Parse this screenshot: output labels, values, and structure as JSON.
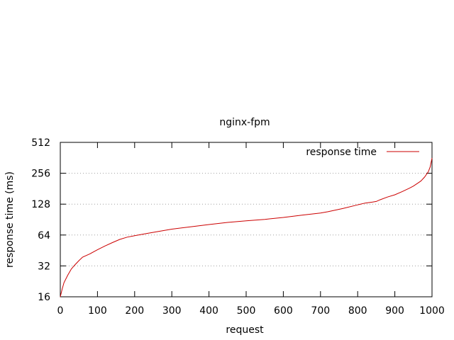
{
  "chart_data": {
    "type": "line",
    "title": "nginx-fpm",
    "xlabel": "request",
    "ylabel": "response time (ms)",
    "xlim": [
      0,
      1000
    ],
    "ylim": [
      16,
      512
    ],
    "yscale": "log2",
    "grid": "horizontal dotted",
    "legend_position": "top-right",
    "x_ticks": [
      "0",
      "100",
      "200",
      "300",
      "400",
      "500",
      "600",
      "700",
      "800",
      "900",
      "1000"
    ],
    "y_ticks": [
      "16",
      "32",
      "64",
      "128",
      "256",
      "512"
    ],
    "series": [
      {
        "name": "response time",
        "color": "#cc0000",
        "x": [
          0,
          5,
          10,
          20,
          30,
          40,
          50,
          60,
          80,
          100,
          120,
          140,
          160,
          180,
          200,
          230,
          260,
          300,
          350,
          400,
          450,
          500,
          550,
          600,
          650,
          700,
          720,
          760,
          800,
          820,
          840,
          850,
          860,
          880,
          900,
          920,
          940,
          950,
          960,
          970,
          980,
          990,
          995,
          1000
        ],
        "y": [
          16,
          19,
          22,
          26,
          30,
          33,
          36,
          39,
          42,
          46,
          50,
          54,
          58,
          61,
          63,
          66,
          69,
          73,
          77,
          81,
          85,
          88,
          91,
          95,
          100,
          105,
          108,
          116,
          126,
          131,
          134,
          136,
          141,
          150,
          158,
          170,
          184,
          192,
          203,
          215,
          235,
          265,
          295,
          360
        ]
      }
    ]
  }
}
